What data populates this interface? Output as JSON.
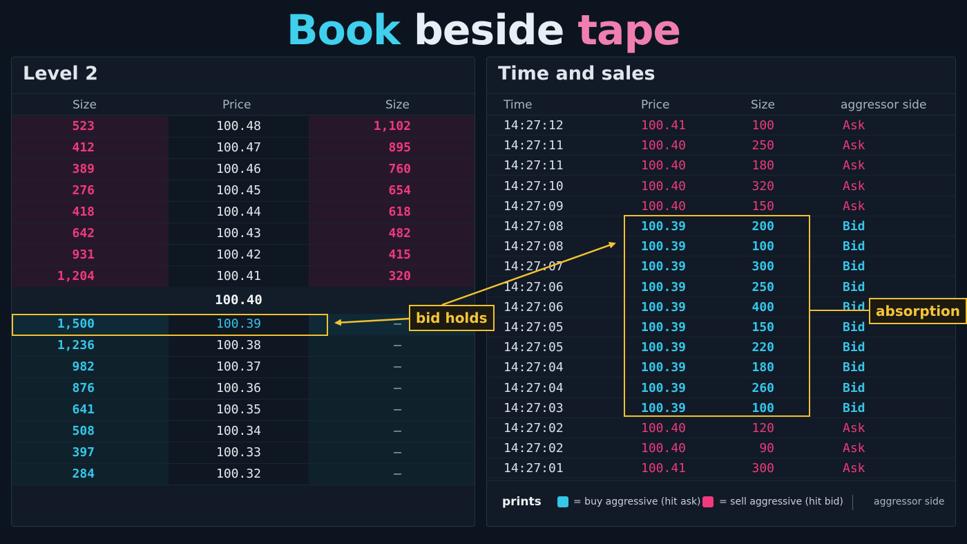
{
  "title": {
    "word1": "Book",
    "word2": "beside",
    "word3": "tape"
  },
  "colors": {
    "ask": "#ef3a7d",
    "bid": "#35c6ea",
    "highlight": "#f2c230",
    "background": "#0c1420"
  },
  "level2": {
    "title": "Level 2",
    "headers": [
      "Size",
      "Price",
      "Size"
    ],
    "asks": [
      {
        "bid_size": "523",
        "price": "100.48",
        "ask_size": "1,102"
      },
      {
        "bid_size": "412",
        "price": "100.47",
        "ask_size": "895"
      },
      {
        "bid_size": "389",
        "price": "100.46",
        "ask_size": "760"
      },
      {
        "bid_size": "276",
        "price": "100.45",
        "ask_size": "654"
      },
      {
        "bid_size": "418",
        "price": "100.44",
        "ask_size": "618"
      },
      {
        "bid_size": "642",
        "price": "100.43",
        "ask_size": "482"
      },
      {
        "bid_size": "931",
        "price": "100.42",
        "ask_size": "415"
      },
      {
        "bid_size": "1,204",
        "price": "100.41",
        "ask_size": "320"
      }
    ],
    "spread_price": "100.40",
    "bids": [
      {
        "bid_size": "1,500",
        "price": "100.39",
        "ask_size": "–"
      },
      {
        "bid_size": "1,236",
        "price": "100.38",
        "ask_size": "–"
      },
      {
        "bid_size": "982",
        "price": "100.37",
        "ask_size": "–"
      },
      {
        "bid_size": "876",
        "price": "100.36",
        "ask_size": "–"
      },
      {
        "bid_size": "641",
        "price": "100.35",
        "ask_size": "–"
      },
      {
        "bid_size": "508",
        "price": "100.34",
        "ask_size": "–"
      },
      {
        "bid_size": "397",
        "price": "100.33",
        "ask_size": "–"
      },
      {
        "bid_size": "284",
        "price": "100.32",
        "ask_size": "–"
      }
    ]
  },
  "tape": {
    "title": "Time and sales",
    "headers": [
      "Time",
      "Price",
      "Size",
      "aggressor side"
    ],
    "rows": [
      {
        "time": "14:27:12",
        "price": "100.41",
        "size": "100",
        "side": "Ask"
      },
      {
        "time": "14:27:11",
        "price": "100.40",
        "size": "250",
        "side": "Ask"
      },
      {
        "time": "14:27:11",
        "price": "100.40",
        "size": "180",
        "side": "Ask"
      },
      {
        "time": "14:27:10",
        "price": "100.40",
        "size": "320",
        "side": "Ask"
      },
      {
        "time": "14:27:09",
        "price": "100.40",
        "size": "150",
        "side": "Ask"
      },
      {
        "time": "14:27:08",
        "price": "100.39",
        "size": "200",
        "side": "Bid"
      },
      {
        "time": "14:27:08",
        "price": "100.39",
        "size": "100",
        "side": "Bid"
      },
      {
        "time": "14:27:07",
        "price": "100.39",
        "size": "300",
        "side": "Bid"
      },
      {
        "time": "14:27:06",
        "price": "100.39",
        "size": "250",
        "side": "Bid"
      },
      {
        "time": "14:27:06",
        "price": "100.39",
        "size": "400",
        "side": "Bid"
      },
      {
        "time": "14:27:05",
        "price": "100.39",
        "size": "150",
        "side": "Bid"
      },
      {
        "time": "14:27:05",
        "price": "100.39",
        "size": "220",
        "side": "Bid"
      },
      {
        "time": "14:27:04",
        "price": "100.39",
        "size": "180",
        "side": "Bid"
      },
      {
        "time": "14:27:04",
        "price": "100.39",
        "size": "260",
        "side": "Bid"
      },
      {
        "time": "14:27:03",
        "price": "100.39",
        "size": "100",
        "side": "Bid"
      },
      {
        "time": "14:27:02",
        "price": "100.40",
        "size": "120",
        "side": "Ask"
      },
      {
        "time": "14:27:02",
        "price": "100.40",
        "size": "90",
        "side": "Ask"
      },
      {
        "time": "14:27:01",
        "price": "100.41",
        "size": "300",
        "side": "Ask"
      }
    ]
  },
  "annotations": {
    "bid_holds": "bid holds",
    "absorption": "absorption"
  },
  "legend": {
    "label": "prints",
    "buy": "= buy aggressive (hit ask)",
    "sell": "= sell aggressive (hit bid)",
    "side": "aggressor side"
  }
}
